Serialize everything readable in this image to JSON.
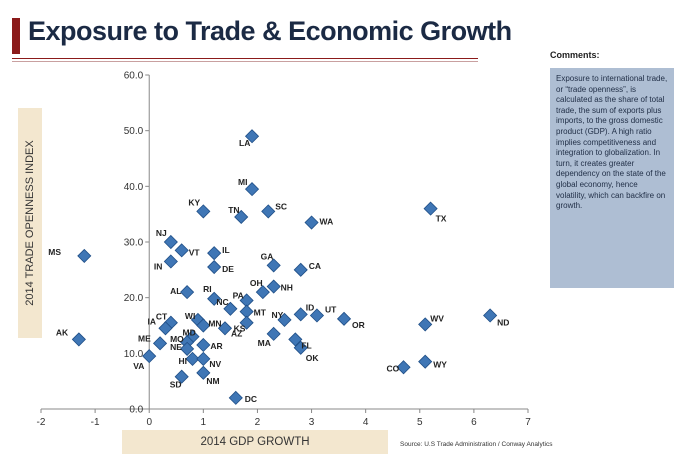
{
  "title": "Exposure to Trade & Economic Growth",
  "comments": {
    "label": "Comments:",
    "text": "Exposure to international trade, or “trade openness”, is calculated as the share of total trade, the sum of exports plus imports, to the gross domestic product (GDP). A high ratio implies competitiveness and integration to globalization. In turn, it creates greater dependency on the state of the global economy, hence volatility, which can backfire on growth."
  },
  "source": "Source: U.S Trade Administration / Conway Analytics",
  "colors": {
    "marker": "#3f76b5",
    "marker_edge": "#1f4e86",
    "title": "#1b2a44",
    "accent": "#8b1a1a",
    "label_band": "#f3e7cf",
    "comments_bg": "#aebed3"
  },
  "chart_data": {
    "type": "scatter",
    "xlabel": "2014 GDP GROWTH",
    "ylabel": "2014 TRADE OPENNESS INDEX",
    "xlim": [
      -2,
      7
    ],
    "ylim": [
      0,
      60
    ],
    "xticks": [
      "-2",
      "-1",
      "0",
      "1",
      "2",
      "3",
      "4",
      "5",
      "6",
      "7"
    ],
    "yticks": [
      "0.0",
      "10.0",
      "20.0",
      "30.0",
      "40.0",
      "50.0",
      "60.0"
    ],
    "grid": false,
    "points": [
      {
        "label": "LA",
        "x": 1.9,
        "y": 49.0
      },
      {
        "label": "MI",
        "x": 1.9,
        "y": 39.5
      },
      {
        "label": "KY",
        "x": 1.0,
        "y": 35.5
      },
      {
        "label": "TN",
        "x": 1.7,
        "y": 34.5
      },
      {
        "label": "SC",
        "x": 2.2,
        "y": 35.5
      },
      {
        "label": "WA",
        "x": 3.0,
        "y": 33.5
      },
      {
        "label": "TX",
        "x": 5.2,
        "y": 36.0
      },
      {
        "label": "MS",
        "x": -1.2,
        "y": 27.5
      },
      {
        "label": "NJ",
        "x": 0.4,
        "y": 30.0
      },
      {
        "label": "VT",
        "x": 0.6,
        "y": 28.5
      },
      {
        "label": "IN",
        "x": 0.4,
        "y": 26.5
      },
      {
        "label": "IL",
        "x": 1.2,
        "y": 28.0
      },
      {
        "label": "DE",
        "x": 1.2,
        "y": 25.5
      },
      {
        "label": "GA",
        "x": 2.3,
        "y": 25.8
      },
      {
        "label": "CA",
        "x": 2.8,
        "y": 25.0
      },
      {
        "label": "AL",
        "x": 0.7,
        "y": 21.0
      },
      {
        "label": "RI",
        "x": 1.2,
        "y": 19.8
      },
      {
        "label": "OH",
        "x": 2.1,
        "y": 21.0
      },
      {
        "label": "NH",
        "x": 2.3,
        "y": 22.0
      },
      {
        "label": "PA",
        "x": 1.8,
        "y": 19.5
      },
      {
        "label": "NC",
        "x": 1.5,
        "y": 18.0
      },
      {
        "label": "ID",
        "x": 2.8,
        "y": 17.0
      },
      {
        "label": "UT",
        "x": 3.1,
        "y": 16.8
      },
      {
        "label": "NY",
        "x": 2.5,
        "y": 16.0
      },
      {
        "label": "MT",
        "x": 1.8,
        "y": 17.5
      },
      {
        "label": "KS",
        "x": 1.8,
        "y": 15.5
      },
      {
        "label": "OR",
        "x": 3.6,
        "y": 16.2
      },
      {
        "label": "WV",
        "x": 5.1,
        "y": 15.2
      },
      {
        "label": "ND",
        "x": 6.3,
        "y": 16.8
      },
      {
        "label": "CT",
        "x": 0.4,
        "y": 15.5
      },
      {
        "label": "WI",
        "x": 0.9,
        "y": 16.0
      },
      {
        "label": "MN",
        "x": 1.0,
        "y": 15.0
      },
      {
        "label": "IA",
        "x": 0.3,
        "y": 14.5
      },
      {
        "label": "AZ",
        "x": 1.4,
        "y": 14.5
      },
      {
        "label": "AK",
        "x": -1.3,
        "y": 12.5
      },
      {
        "label": "ME",
        "x": 0.2,
        "y": 11.8
      },
      {
        "label": "MD",
        "x": 0.8,
        "y": 13.0
      },
      {
        "label": "MO",
        "x": 0.7,
        "y": 12.0
      },
      {
        "label": "AR",
        "x": 1.0,
        "y": 11.5
      },
      {
        "label": "NE",
        "x": 0.7,
        "y": 10.8
      },
      {
        "label": "MA",
        "x": 2.3,
        "y": 13.5
      },
      {
        "label": "FL",
        "x": 2.7,
        "y": 12.5
      },
      {
        "label": "OK",
        "x": 2.8,
        "y": 11.0
      },
      {
        "label": "VA",
        "x": 0.0,
        "y": 9.5
      },
      {
        "label": "HI",
        "x": 0.8,
        "y": 9.0
      },
      {
        "label": "NV",
        "x": 1.0,
        "y": 9.0
      },
      {
        "label": "SD",
        "x": 0.6,
        "y": 5.8
      },
      {
        "label": "NM",
        "x": 1.0,
        "y": 6.5
      },
      {
        "label": "DC",
        "x": 1.6,
        "y": 2.0
      },
      {
        "label": "CO",
        "x": 4.7,
        "y": 7.5
      },
      {
        "label": "WY",
        "x": 5.1,
        "y": 8.5
      }
    ]
  }
}
